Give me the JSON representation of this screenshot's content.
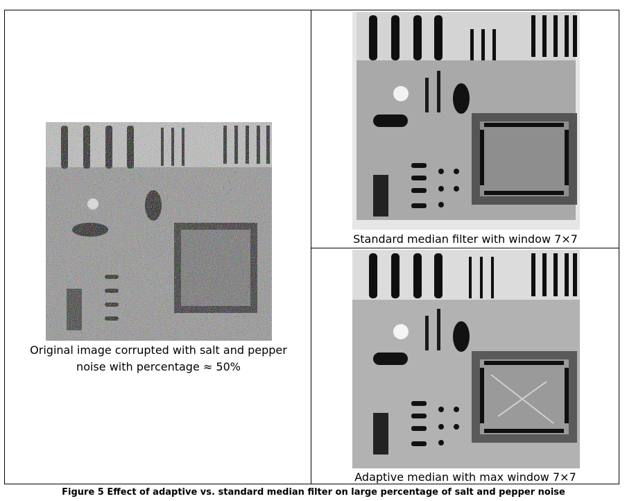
{
  "left_panel": {
    "caption_line1": "Original image corrupted with salt and pepper",
    "caption_line2": "noise with percentage ≈ 50%"
  },
  "top_right_panel": {
    "caption": "Standard median filter with window 7×7"
  },
  "bottom_right_panel": {
    "caption": "Adaptive median with max window 7×7"
  },
  "figure_caption": "Figure 5 Effect of adaptive vs. standard median filter on large percentage of salt and pepper noise"
}
